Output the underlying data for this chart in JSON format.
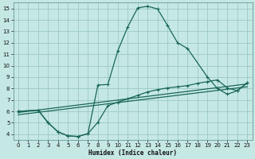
{
  "xlabel": "Humidex (Indice chaleur)",
  "xlim": [
    -0.5,
    23.5
  ],
  "ylim": [
    3.5,
    15.5
  ],
  "yticks": [
    4,
    5,
    6,
    7,
    8,
    9,
    10,
    11,
    12,
    13,
    14,
    15
  ],
  "xticks": [
    0,
    1,
    2,
    3,
    4,
    5,
    6,
    7,
    8,
    9,
    10,
    11,
    12,
    13,
    14,
    15,
    16,
    17,
    18,
    19,
    20,
    21,
    22,
    23
  ],
  "bg_color": "#c5e8e5",
  "grid_color": "#9cc8c4",
  "line_color": "#1a6658",
  "curve1_x": [
    0,
    2,
    3,
    4,
    5,
    6,
    7,
    8,
    9,
    10,
    11,
    12,
    13,
    14,
    15,
    16,
    17,
    19,
    20,
    21,
    22,
    23
  ],
  "curve1_y": [
    6.0,
    6.1,
    5.0,
    4.2,
    3.85,
    3.8,
    4.05,
    8.3,
    8.35,
    11.3,
    13.4,
    15.05,
    15.2,
    14.95,
    13.5,
    12.0,
    11.5,
    9.0,
    8.0,
    7.5,
    7.8,
    8.5
  ],
  "curve2_x": [
    0,
    2,
    3,
    4,
    5,
    6,
    7,
    8,
    9,
    10,
    11,
    12,
    13,
    14,
    15,
    16,
    17,
    18,
    19,
    20,
    21,
    22,
    23
  ],
  "curve2_y": [
    6.0,
    6.1,
    5.0,
    4.2,
    3.85,
    3.8,
    4.05,
    5.05,
    6.5,
    6.8,
    7.1,
    7.4,
    7.7,
    7.9,
    8.05,
    8.15,
    8.25,
    8.45,
    8.6,
    8.75,
    8.05,
    7.8,
    8.5
  ],
  "line3_x": [
    0,
    23
  ],
  "line3_y": [
    5.9,
    8.4
  ],
  "line4_x": [
    0,
    23
  ],
  "line4_y": [
    5.7,
    8.15
  ]
}
